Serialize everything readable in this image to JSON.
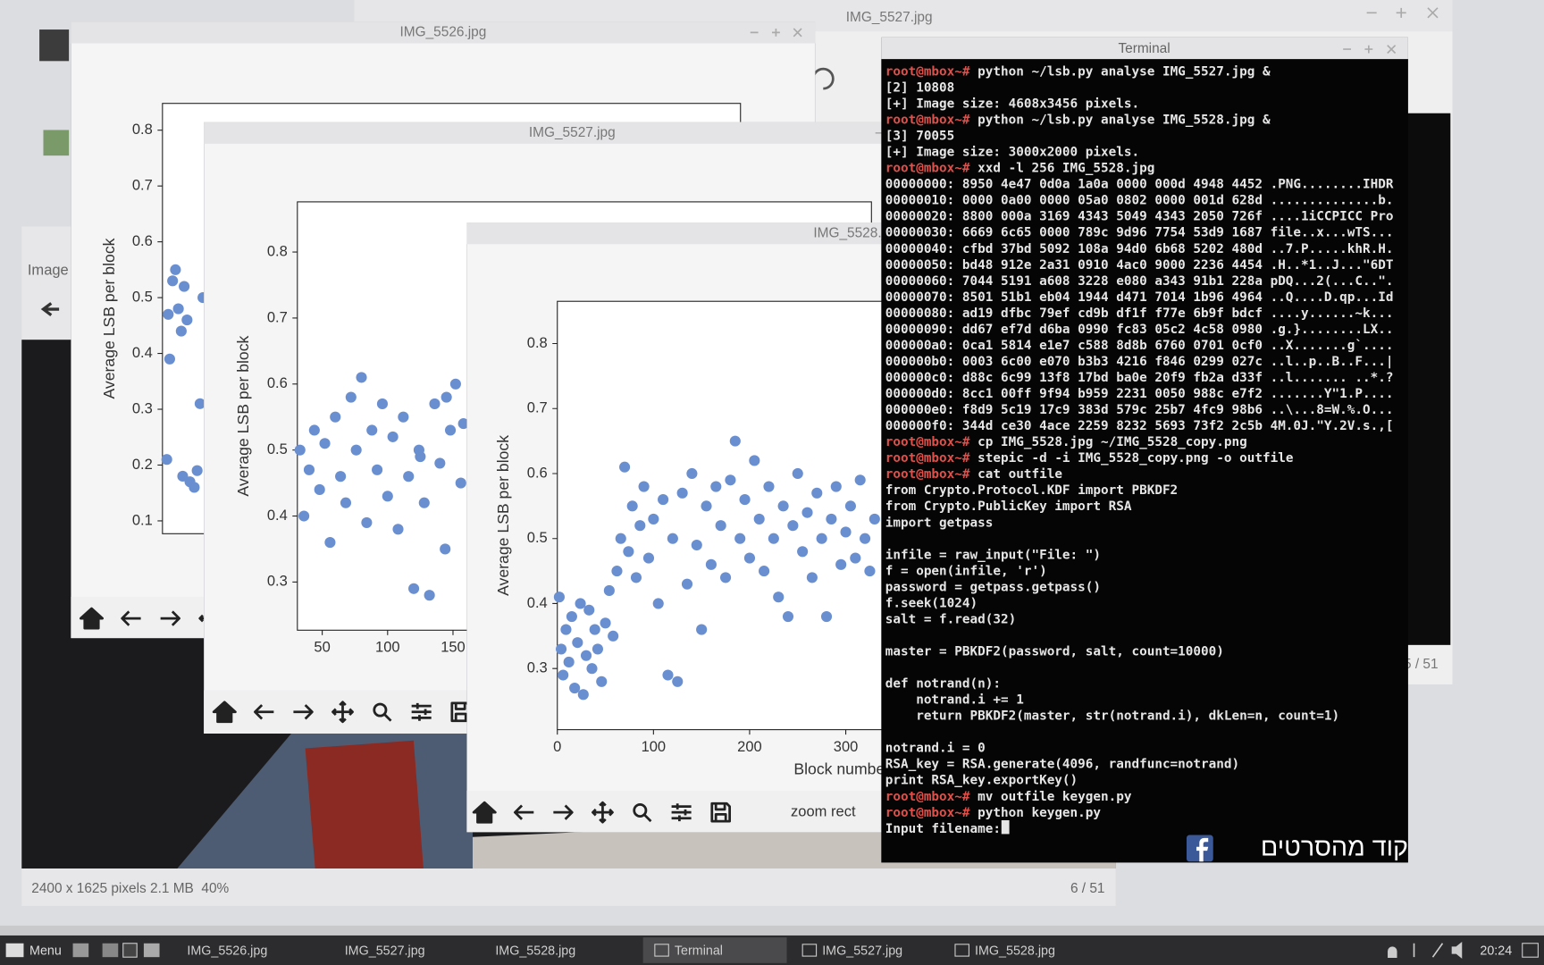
{
  "viewer_back": {
    "title": "IMG_5527.jpg",
    "counter": "5 / 51"
  },
  "viewer_front": {
    "side_label": "Image",
    "status": "2400 x 1625 pixels 2.1 MB  40%",
    "counter": "6 / 51"
  },
  "plots": [
    {
      "type": "scatter",
      "title": "IMG_5526.jpg",
      "ylabel": "Average LSB per block",
      "xlim": [
        0,
        400
      ],
      "ylim": [
        0.077,
        0.848
      ],
      "yticks": [
        0.1,
        0.2,
        0.3,
        0.4,
        0.5,
        0.6,
        0.7,
        0.8
      ],
      "color": "#6a8fd0",
      "x": [
        3,
        5,
        7,
        9,
        11,
        13,
        15,
        17,
        19,
        22,
        24,
        26,
        28,
        4,
        14
      ],
      "y": [
        0.21,
        0.39,
        0.53,
        0.55,
        0.48,
        0.44,
        0.52,
        0.46,
        0.17,
        0.16,
        0.19,
        0.31,
        0.5,
        0.47,
        0.18
      ]
    },
    {
      "type": "scatter",
      "title": "IMG_5527.jpg",
      "ylabel": "Average LSB per block",
      "xlim": [
        31,
        470
      ],
      "ylim": [
        0.227,
        0.876
      ],
      "xticks": [
        50,
        100,
        150
      ],
      "yticks": [
        0.3,
        0.4,
        0.5,
        0.6,
        0.7,
        0.8
      ],
      "color": "#6a8fd0",
      "x": [
        33,
        36,
        40,
        44,
        48,
        52,
        56,
        60,
        64,
        68,
        72,
        76,
        80,
        84,
        88,
        92,
        96,
        100,
        104,
        108,
        112,
        116,
        120,
        124,
        128,
        132,
        136,
        140,
        144,
        148,
        152,
        156,
        158,
        145,
        125
      ],
      "y": [
        0.5,
        0.4,
        0.47,
        0.53,
        0.44,
        0.51,
        0.36,
        0.55,
        0.46,
        0.42,
        0.58,
        0.5,
        0.61,
        0.39,
        0.53,
        0.47,
        0.57,
        0.43,
        0.52,
        0.38,
        0.55,
        0.46,
        0.29,
        0.5,
        0.42,
        0.28,
        0.57,
        0.48,
        0.35,
        0.53,
        0.6,
        0.45,
        0.54,
        0.58,
        0.49
      ]
    },
    {
      "type": "scatter",
      "title": "IMG_5528.jpg",
      "ylabel": "Average LSB per block",
      "xlabel": "Block number",
      "status": "zoom rect",
      "xlim": [
        0,
        592
      ],
      "ylim": [
        0.206,
        0.865
      ],
      "xticks": [
        0,
        100,
        200,
        300
      ],
      "yticks": [
        0.3,
        0.4,
        0.5,
        0.6,
        0.7,
        0.8
      ],
      "color": "#6a8fd0",
      "x": [
        2,
        4,
        6,
        9,
        12,
        15,
        18,
        21,
        24,
        27,
        30,
        33,
        36,
        39,
        42,
        46,
        50,
        54,
        58,
        62,
        66,
        70,
        74,
        78,
        82,
        86,
        90,
        95,
        100,
        105,
        110,
        115,
        120,
        125,
        130,
        135,
        140,
        145,
        150,
        155,
        160,
        165,
        170,
        175,
        180,
        185,
        190,
        195,
        200,
        205,
        210,
        215,
        220,
        225,
        230,
        235,
        240,
        245,
        250,
        255,
        260,
        265,
        270,
        275,
        280,
        285,
        290,
        295,
        300,
        305,
        310,
        315,
        320,
        325,
        330
      ],
      "y": [
        0.41,
        0.33,
        0.29,
        0.36,
        0.31,
        0.38,
        0.27,
        0.34,
        0.4,
        0.26,
        0.32,
        0.39,
        0.3,
        0.36,
        0.33,
        0.28,
        0.37,
        0.42,
        0.35,
        0.45,
        0.5,
        0.61,
        0.48,
        0.55,
        0.44,
        0.52,
        0.58,
        0.47,
        0.53,
        0.4,
        0.56,
        0.29,
        0.5,
        0.28,
        0.57,
        0.43,
        0.6,
        0.49,
        0.36,
        0.55,
        0.46,
        0.58,
        0.52,
        0.44,
        0.59,
        0.65,
        0.5,
        0.56,
        0.47,
        0.62,
        0.53,
        0.45,
        0.58,
        0.5,
        0.41,
        0.55,
        0.38,
        0.52,
        0.6,
        0.48,
        0.54,
        0.44,
        0.57,
        0.5,
        0.38,
        0.53,
        0.58,
        0.46,
        0.51,
        0.55,
        0.47,
        0.59,
        0.5,
        0.45,
        0.53
      ]
    }
  ],
  "terminal": {
    "title": "Terminal",
    "blocks": [
      [
        {
          "prompt": "root@mbox~#",
          "cmd": " python ~/lsb.py analyse IMG_5527.jpg &"
        },
        "[2] 10808",
        "[+] Image size: 4608x3456 pixels.",
        {
          "prompt": "root@mbox~#",
          "cmd": " python ~/lsb.py analyse IMG_5528.jpg &"
        },
        "[3] 70055",
        "[+] Image size: 3000x2000 pixels.",
        {
          "prompt": "root@mbox~#",
          "cmd": " xxd -l 256 IMG_5528.jpg"
        },
        "00000000: 8950 4e47 0d0a 1a0a 0000 000d 4948 4452 .PNG........IHDR",
        "00000010: 0000 0a00 0000 05a0 0802 0000 001d 628d ..............b.",
        "00000020: 8800 000a 3169 4343 5049 4343 2050 726f ....1iCCPICC Pro",
        "00000030: 6669 6c65 0000 789c 9d96 7754 53d9 1687 file..x...wTS...",
        "00000040: cfbd 37bd 5092 108a 94d0 6b68 5202 480d ..7.P.....khR.H.",
        "00000050: bd48 912e 2a31 0910 4ac0 9000 2236 4454 .H..*1..J...\"6DT",
        "00000060: 7044 5191 a608 3228 e080 a343 91b1 228a pDQ...2(...C..\".",
        "00000070: 8501 51b1 eb04 1944 d471 7014 1b96 4964 ..Q....D.qp...Id",
        "00000080: ad19 dfbc 79ef cd9b df1f f77e 6b9f bdcf ....y......~k...",
        "00000090: dd67 ef7d d6ba 0990 fc83 05c2 4c58 0980 .g.}........LX..",
        "000000a0: 0ca1 5814 e1e7 c588 8d8b 6760 0701 0cf0 ..X.......g`....",
        "000000b0: 0003 6c00 e070 b3b3 4216 f846 0299 027c ..l..p..B..F...|",
        "000000c0: d88c 6c99 13f8 17bd ba0e 20f9 fb2a d33f ..l....... ..*.?",
        "000000d0: 8cc1 00ff 9f94 b959 2231 0050 988c e7f2 .......Y\"1.P....",
        "000000e0: f8d9 5c19 17c9 383d 579c 25b7 4fc9 98b6 ..\\...8=W.%.O...",
        "000000f0: 344d ce30 4ace 2259 8232 5693 73f2 2c5b 4M.0J.\"Y.2V.s.,[",
        {
          "prompt": "root@mbox~#",
          "cmd": " cp IMG_5528.jpg ~/IMG_5528_copy.png"
        },
        {
          "prompt": "root@mbox~#",
          "cmd": " stepic -d -i IMG_5528_copy.png -o outfile"
        },
        {
          "prompt": "root@mbox~#",
          "cmd": " cat outfile"
        },
        "from Crypto.Protocol.KDF import PBKDF2",
        "from Crypto.PublicKey import RSA",
        "import getpass"
      ],
      [
        "infile = raw_input(\"File: \")",
        "f = open(infile, 'r')",
        "password = getpass.getpass()",
        "f.seek(1024)",
        "salt = f.read(32)"
      ],
      [
        "master = PBKDF2(password, salt, count=10000)"
      ],
      [
        "def notrand(n):",
        "    notrand.i += 1",
        "    return PBKDF2(master, str(notrand.i), dkLen=n, count=1)"
      ],
      [
        "notrand.i = 0",
        "RSA_key = RSA.generate(4096, randfunc=notrand)",
        "print RSA_key.exportKey()",
        {
          "prompt": "root@mbox~#",
          "cmd": " mv outfile keygen.py"
        },
        {
          "prompt": "root@mbox~#",
          "cmd": " python keygen.py"
        },
        "Input filename:"
      ]
    ]
  },
  "watermark": "קוד מהסרטים",
  "taskbar": {
    "menu": "Menu",
    "items": [
      "IMG_5526.jpg",
      "IMG_5527.jpg",
      "IMG_5528.jpg",
      "Terminal",
      "IMG_5527.jpg",
      "IMG_5528.jpg"
    ],
    "active": 3,
    "clock": "20:24"
  }
}
